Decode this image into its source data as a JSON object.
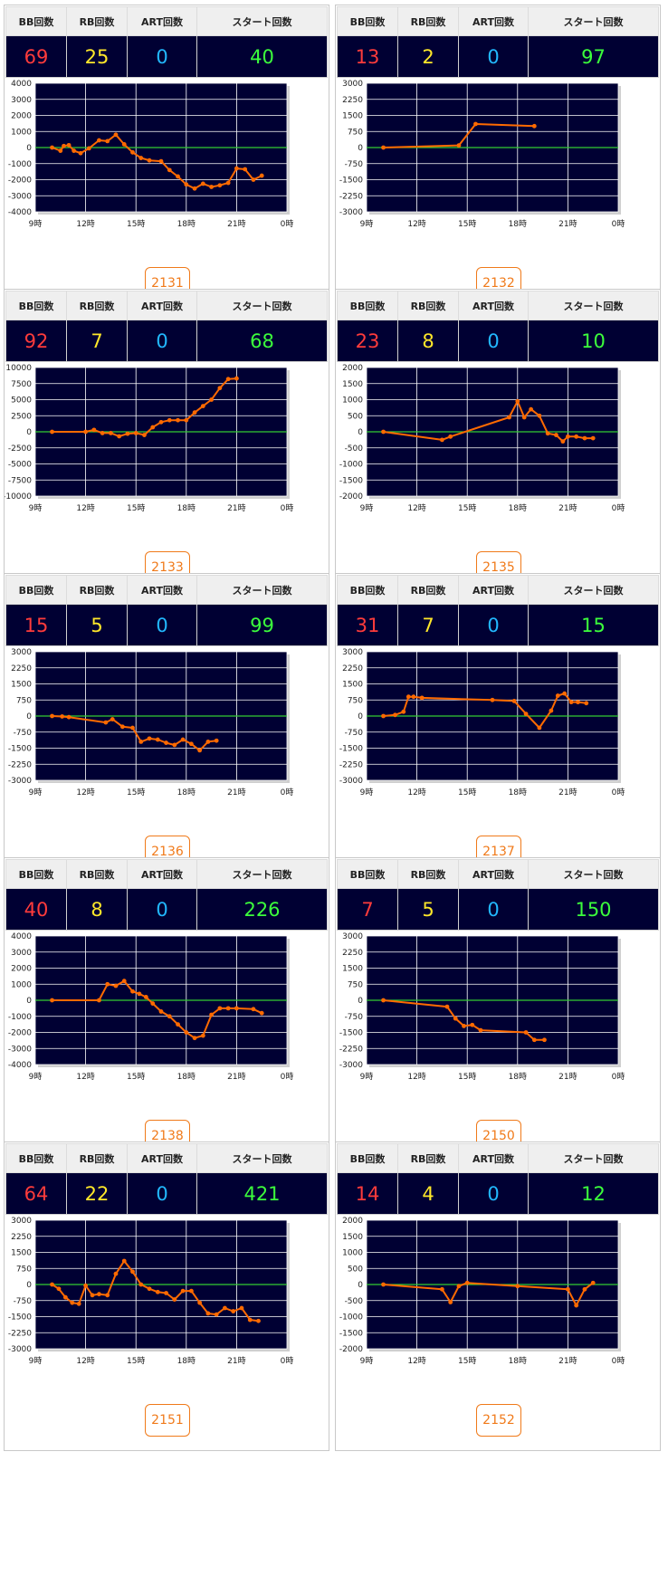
{
  "headers": {
    "bb": "BB回数",
    "rb": "RB回数",
    "art": "ART回数",
    "start": "スタート回数"
  },
  "colors": {
    "plot_bg": "#000033",
    "line": "#ff6a00",
    "zero_line": "#33cc33",
    "grid": "#ffffff",
    "bb": "#ff3b3b",
    "rb": "#ffe82a",
    "art": "#22b8ff",
    "start": "#3cff3c",
    "button": "#f07a1a"
  },
  "x_axis": {
    "ticks": [
      "9時",
      "12時",
      "15時",
      "18時",
      "21時",
      "0時"
    ],
    "hour_range": [
      9,
      24
    ]
  },
  "machines": [
    {
      "id": "2131",
      "bb": "69",
      "rb": "25",
      "art": "0",
      "start": "40",
      "chart_data": {
        "type": "line",
        "ylim": [
          -4000,
          4000
        ],
        "yticks": [
          4000,
          3000,
          2000,
          1000,
          0,
          -1000,
          -2000,
          -3000,
          -4000
        ],
        "x": [
          10,
          10.5,
          10.7,
          11,
          11.3,
          11.7,
          12.2,
          12.8,
          13.3,
          13.8,
          14.3,
          14.8,
          15.3,
          15.8,
          16.5,
          17,
          17.5,
          18,
          18.5,
          19,
          19.5,
          20,
          20.5,
          21,
          21.5,
          22,
          22.5
        ],
        "y": [
          0,
          -200,
          100,
          150,
          -200,
          -350,
          -50,
          450,
          400,
          800,
          200,
          -300,
          -650,
          -800,
          -850,
          -1400,
          -1800,
          -2300,
          -2550,
          -2250,
          -2450,
          -2350,
          -2200,
          -1300,
          -1350,
          -2000,
          -1750
        ]
      }
    },
    {
      "id": "2132",
      "bb": "13",
      "rb": "2",
      "art": "0",
      "start": "97",
      "chart_data": {
        "type": "line",
        "ylim": [
          -3000,
          3000
        ],
        "yticks": [
          3000,
          2250,
          1500,
          750,
          0,
          -750,
          -1500,
          -2250,
          -3000
        ],
        "x": [
          10,
          14.5,
          15.5,
          19
        ],
        "y": [
          0,
          100,
          1100,
          1000
        ]
      }
    },
    {
      "id": "2133",
      "bb": "92",
      "rb": "7",
      "art": "0",
      "start": "68",
      "chart_data": {
        "type": "line",
        "ylim": [
          -10000,
          10000
        ],
        "yticks": [
          10000,
          7500,
          5000,
          2500,
          0,
          -2500,
          -5000,
          -7500,
          -10000
        ],
        "x": [
          10,
          12,
          12.5,
          13,
          13.5,
          14,
          14.5,
          15,
          15.5,
          16,
          16.5,
          17,
          17.5,
          18,
          18.5,
          19,
          19.5,
          20,
          20.5,
          21
        ],
        "y": [
          0,
          0,
          300,
          -200,
          -200,
          -700,
          -300,
          -200,
          -500,
          700,
          1500,
          1800,
          1800,
          1800,
          3000,
          4000,
          5000,
          6800,
          8200,
          8300
        ]
      }
    },
    {
      "id": "2135",
      "bb": "23",
      "rb": "8",
      "art": "0",
      "start": "10",
      "chart_data": {
        "type": "line",
        "ylim": [
          -2000,
          2000
        ],
        "yticks": [
          2000,
          1500,
          1000,
          500,
          0,
          -500,
          -1000,
          -1500,
          -2000
        ],
        "x": [
          10,
          13.5,
          14,
          17.5,
          18,
          18.4,
          18.8,
          19.3,
          19.8,
          20.3,
          20.7,
          21,
          21.5,
          22,
          22.5
        ],
        "y": [
          0,
          -250,
          -150,
          450,
          950,
          450,
          700,
          500,
          -50,
          -100,
          -300,
          -150,
          -150,
          -200,
          -200
        ]
      }
    },
    {
      "id": "2136",
      "bb": "15",
      "rb": "5",
      "art": "0",
      "start": "99",
      "chart_data": {
        "type": "line",
        "ylim": [
          -3000,
          3000
        ],
        "yticks": [
          3000,
          2250,
          1500,
          750,
          0,
          -750,
          -1500,
          -2250,
          -3000
        ],
        "x": [
          10,
          10.6,
          11,
          13.2,
          13.6,
          14.2,
          14.8,
          15.3,
          15.8,
          16.3,
          16.8,
          17.3,
          17.8,
          18.3,
          18.8,
          19.3,
          19.8
        ],
        "y": [
          0,
          -20,
          -50,
          -300,
          -150,
          -500,
          -550,
          -1200,
          -1050,
          -1100,
          -1250,
          -1350,
          -1100,
          -1300,
          -1600,
          -1200,
          -1150
        ]
      }
    },
    {
      "id": "2137",
      "bb": "31",
      "rb": "7",
      "art": "0",
      "start": "15",
      "chart_data": {
        "type": "line",
        "ylim": [
          -3000,
          3000
        ],
        "yticks": [
          3000,
          2250,
          1500,
          750,
          0,
          -750,
          -1500,
          -2250,
          -3000
        ],
        "x": [
          10,
          10.7,
          11.2,
          11.5,
          11.8,
          12.3,
          16.5,
          17.8,
          18.5,
          19.3,
          20,
          20.4,
          20.8,
          21.2,
          21.6,
          22.1
        ],
        "y": [
          0,
          50,
          200,
          900,
          900,
          850,
          750,
          700,
          100,
          -550,
          250,
          950,
          1050,
          650,
          650,
          600
        ]
      }
    },
    {
      "id": "2138",
      "bb": "40",
      "rb": "8",
      "art": "0",
      "start": "226",
      "chart_data": {
        "type": "line",
        "ylim": [
          -4000,
          4000
        ],
        "yticks": [
          4000,
          3000,
          2000,
          1000,
          0,
          -1000,
          -2000,
          -3000,
          -4000
        ],
        "x": [
          10,
          12.8,
          13.3,
          13.8,
          14.3,
          14.8,
          15.2,
          15.6,
          16,
          16.5,
          17,
          17.5,
          18,
          18.5,
          19,
          19.5,
          20,
          20.5,
          21,
          22,
          22.5
        ],
        "y": [
          0,
          0,
          1000,
          900,
          1200,
          550,
          400,
          200,
          -200,
          -700,
          -1000,
          -1500,
          -2000,
          -2350,
          -2200,
          -900,
          -500,
          -500,
          -500,
          -550,
          -800
        ]
      }
    },
    {
      "id": "2150",
      "bb": "7",
      "rb": "5",
      "art": "0",
      "start": "150",
      "chart_data": {
        "type": "line",
        "ylim": [
          -3000,
          3000
        ],
        "yticks": [
          3000,
          2250,
          1500,
          750,
          0,
          -750,
          -1500,
          -2250,
          -3000
        ],
        "x": [
          10,
          13.8,
          14.3,
          14.8,
          15.3,
          15.8,
          18.5,
          19,
          19.6
        ],
        "y": [
          0,
          -300,
          -850,
          -1200,
          -1150,
          -1400,
          -1500,
          -1850,
          -1850
        ]
      }
    },
    {
      "id": "2151",
      "bb": "64",
      "rb": "22",
      "art": "0",
      "start": "421",
      "chart_data": {
        "type": "line",
        "ylim": [
          -3000,
          3000
        ],
        "yticks": [
          3000,
          2250,
          1500,
          750,
          0,
          -750,
          -1500,
          -2250,
          -3000
        ],
        "x": [
          10,
          10.4,
          10.8,
          11.2,
          11.6,
          12,
          12.4,
          12.8,
          13.3,
          13.8,
          14.3,
          14.8,
          15.3,
          15.8,
          16.3,
          16.8,
          17.3,
          17.8,
          18.3,
          18.8,
          19.3,
          19.8,
          20.3,
          20.8,
          21.3,
          21.8,
          22.3
        ],
        "y": [
          0,
          -200,
          -600,
          -850,
          -900,
          -50,
          -500,
          -450,
          -500,
          500,
          1100,
          600,
          0,
          -200,
          -350,
          -400,
          -700,
          -300,
          -300,
          -850,
          -1350,
          -1400,
          -1100,
          -1250,
          -1100,
          -1650,
          -1700
        ]
      }
    },
    {
      "id": "2152",
      "bb": "14",
      "rb": "4",
      "art": "0",
      "start": "12",
      "chart_data": {
        "type": "line",
        "ylim": [
          -2000,
          2000
        ],
        "yticks": [
          2000,
          1500,
          1000,
          500,
          0,
          -500,
          -1000,
          -1500,
          -2000
        ],
        "x": [
          10,
          13.5,
          14,
          14.5,
          15,
          18,
          21,
          21.5,
          22,
          22.5
        ],
        "y": [
          0,
          -150,
          -550,
          -50,
          50,
          -50,
          -150,
          -650,
          -150,
          50
        ]
      }
    }
  ]
}
